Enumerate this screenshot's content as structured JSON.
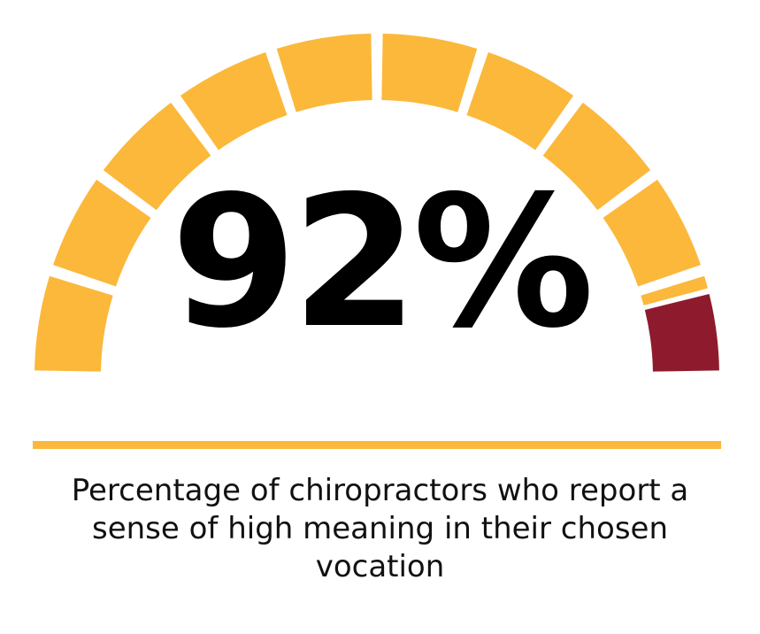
{
  "chart_data": {
    "type": "gauge",
    "value": 92,
    "max": 100,
    "segments": 10,
    "value_label": "92%",
    "caption_lines": [
      "Percentage of chiropractors who report a",
      "sense of high meaning in their chosen",
      "vocation"
    ],
    "colors": {
      "filled": "#FBB83B",
      "remainder": "#8E1B2D",
      "rule": "#FBB83B"
    }
  }
}
